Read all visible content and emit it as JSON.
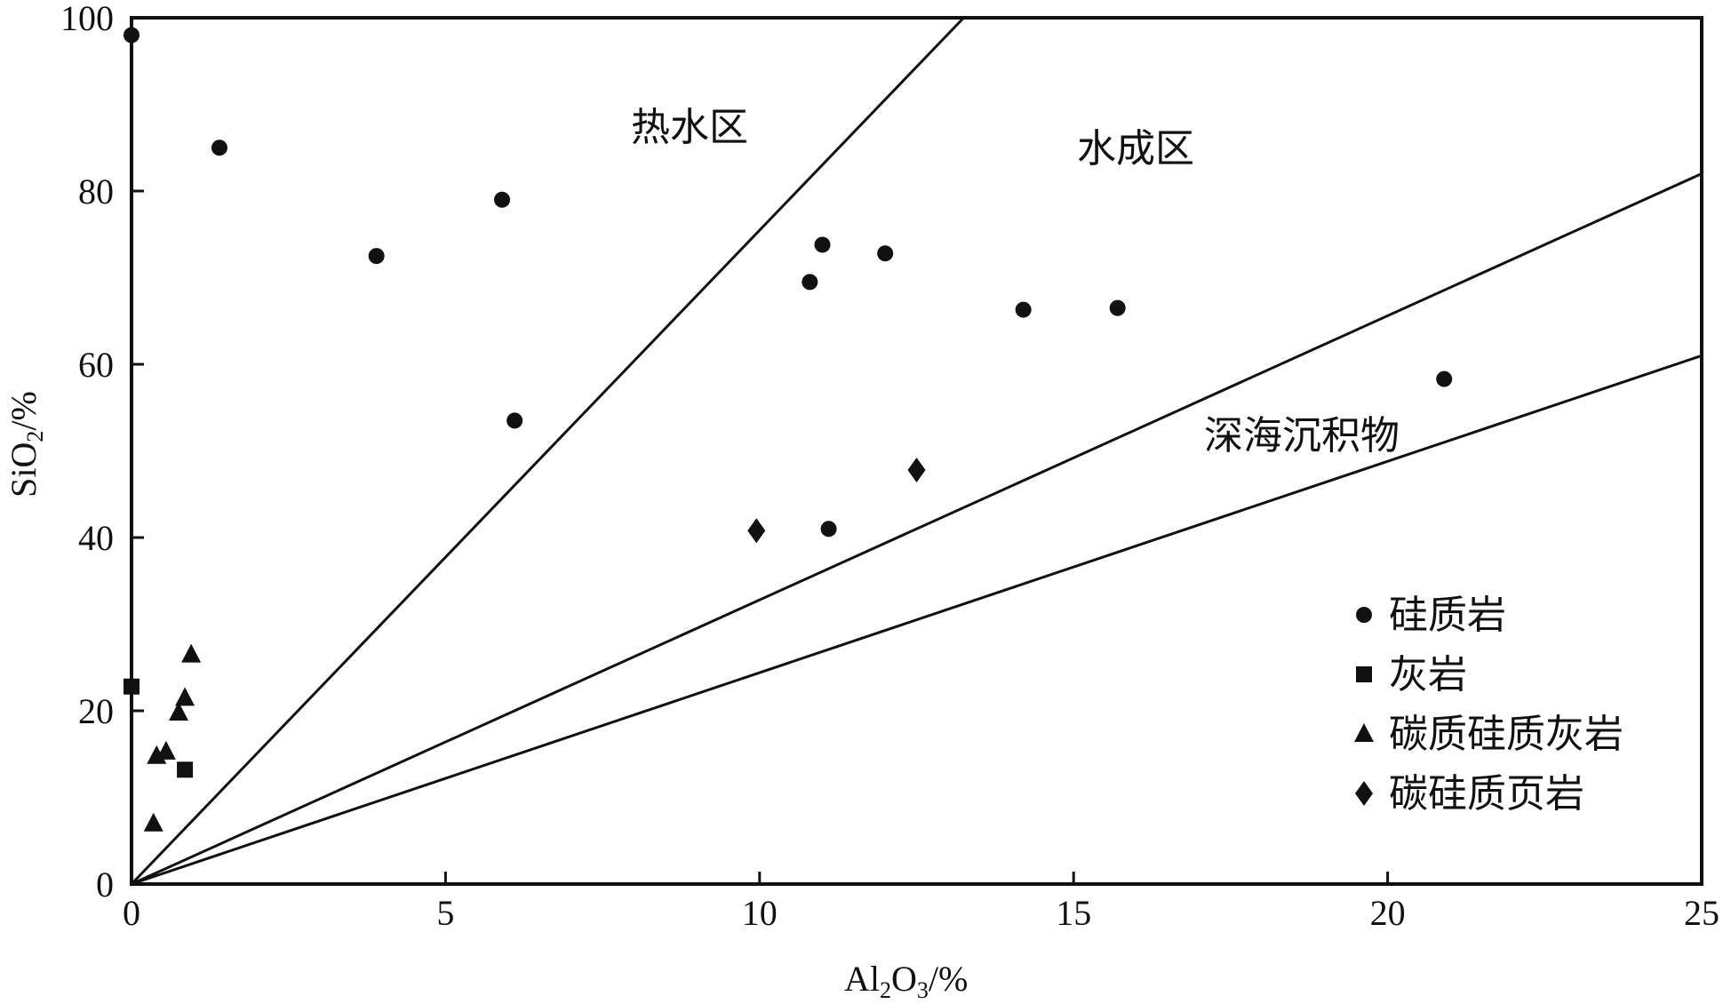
{
  "chart_data": {
    "type": "scatter",
    "title": "",
    "x_axis": {
      "label_main": "Al",
      "label_sub1": "2",
      "label_mid": "O",
      "label_sub2": "3",
      "label_tail": "/%",
      "range": [
        0,
        25
      ],
      "ticks": [
        "0",
        "5",
        "10",
        "15",
        "20",
        "25"
      ]
    },
    "y_axis": {
      "label_main": "SiO",
      "label_sub": "2",
      "label_tail": "/%",
      "range": [
        0,
        100
      ],
      "ticks": [
        "0",
        "20",
        "40",
        "60",
        "80",
        "100"
      ]
    },
    "grid": false,
    "boundary_lines": [
      {
        "id": "hydrothermal-boundary",
        "from": [
          0,
          0
        ],
        "to": [
          13.25,
          100
        ]
      },
      {
        "id": "hydrogenous-boundary",
        "from": [
          0,
          0
        ],
        "to": [
          25,
          82
        ]
      },
      {
        "id": "deep-sea-boundary",
        "from": [
          0,
          0
        ],
        "to": [
          25,
          61
        ]
      }
    ],
    "zone_labels": {
      "hydrothermal": "热水区",
      "hydrogenous": "水成区",
      "deep_sea": "深海沉积物"
    },
    "legend_position": "bottom-right",
    "series": [
      {
        "name": "硅质岩",
        "marker": "circle",
        "points": [
          [
            0,
            98
          ],
          [
            1.4,
            85
          ],
          [
            3.9,
            72.5
          ],
          [
            5.9,
            79
          ],
          [
            6.1,
            53.5
          ],
          [
            10.8,
            69.5
          ],
          [
            11.0,
            73.8
          ],
          [
            11.1,
            41
          ],
          [
            12.0,
            72.8
          ],
          [
            14.2,
            66.3
          ],
          [
            15.7,
            66.5
          ],
          [
            20.9,
            58.3
          ]
        ]
      },
      {
        "name": "灰岩",
        "marker": "square",
        "points": [
          [
            0,
            22.8
          ],
          [
            0.85,
            13.2
          ]
        ]
      },
      {
        "name": "碳质硅质灰岩",
        "marker": "triangle",
        "points": [
          [
            0.35,
            7
          ],
          [
            0.4,
            14.8
          ],
          [
            0.55,
            15.3
          ],
          [
            0.75,
            19.8
          ],
          [
            0.85,
            21.5
          ],
          [
            0.95,
            26.5
          ]
        ]
      },
      {
        "name": "碳硅质页岩",
        "marker": "diamond",
        "points": [
          [
            9.95,
            40.8
          ],
          [
            12.5,
            47.8
          ]
        ]
      }
    ]
  }
}
